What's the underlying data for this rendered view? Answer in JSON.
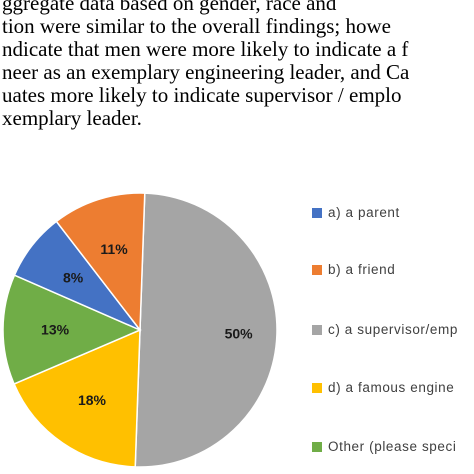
{
  "document": {
    "lines": [
      "ggregate data based on gender, race and",
      "tion were similar to the overall findings; howe",
      "ndicate that men were more likely to indicate a f",
      "neer as an exemplary engineering leader, and Ca",
      "uates more likely to indicate supervisor / emplo",
      "xemplary leader."
    ]
  },
  "chart_data": {
    "type": "pie",
    "series": [
      {
        "label": "a) a parent",
        "value": 8,
        "display": "8%",
        "color": "#4472C4"
      },
      {
        "label": "b) a friend",
        "value": 11,
        "display": "11%",
        "color": "#ED7D31"
      },
      {
        "label": "c) a supervisor/emp",
        "value": 50,
        "display": "50%",
        "color": "#A5A5A5"
      },
      {
        "label": "d) a famous engine",
        "value": 18,
        "display": "18%",
        "color": "#FFC000"
      },
      {
        "label": "Other (please speci",
        "value": 13,
        "display": "13%",
        "color": "#70AD47"
      }
    ],
    "legend_position": "right"
  }
}
